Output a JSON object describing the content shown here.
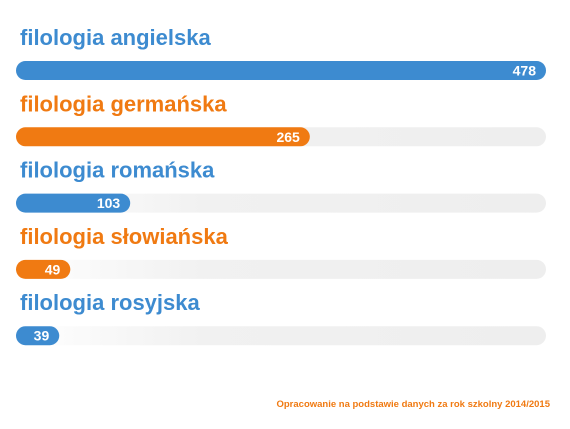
{
  "chart_data": {
    "type": "bar",
    "orientation": "horizontal",
    "categories": [
      "filologia angielska",
      "filologia germańska",
      "filologia romańska",
      "filologia słowiańska",
      "filologia rosyjska"
    ],
    "values": [
      478,
      265,
      103,
      49,
      39
    ],
    "value_labels": [
      "478",
      "265",
      "103",
      "49",
      "39"
    ],
    "xlim": [
      0,
      478
    ],
    "grid": false,
    "legend": "none",
    "colors": [
      "#3d8bd0",
      "#f07a12",
      "#3d8bd0",
      "#f07a12",
      "#3d8bd0"
    ],
    "track_color": "#efefef",
    "source_note": "Opracowanie na podstawie danych za rok szkolny 2014/2015"
  }
}
